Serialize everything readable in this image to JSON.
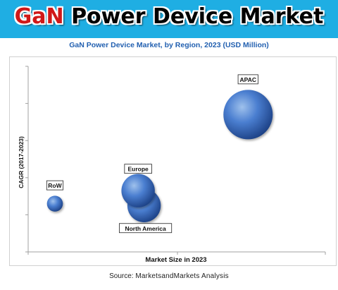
{
  "header": {
    "title_prefix": "GaN",
    "title_rest": " Power Device Market"
  },
  "source": {
    "label": "Source:",
    "name": "MarketsandMarkets  Analysis"
  },
  "colors": {
    "banner": "#1faee3",
    "title_prefix": "#d01818",
    "subtitle": "#2260b0",
    "bubble_light": "#9fc1ec",
    "bubble_mid": "#4a7ed0",
    "bubble_dark": "#1b3f83"
  },
  "chart_data": {
    "type": "scatter",
    "subtype": "bubble",
    "title": "GaN Power Device Market, by Region, 2023 (USD Million)",
    "xlabel": "Market Size in 2023",
    "ylabel": "CAGR (2017-2023)",
    "xlim": [
      0,
      10
    ],
    "ylim": [
      0,
      10
    ],
    "grid": false,
    "axis_values_shown": false,
    "series": [
      {
        "name": "RoW",
        "x": 0.9,
        "y": 2.6,
        "size": 1.0
      },
      {
        "name": "North America",
        "x": 3.9,
        "y": 2.5,
        "size": 2.1
      },
      {
        "name": "Europe",
        "x": 3.7,
        "y": 3.3,
        "size": 2.1
      },
      {
        "name": "APAC",
        "x": 7.4,
        "y": 7.4,
        "size": 3.1
      }
    ]
  }
}
